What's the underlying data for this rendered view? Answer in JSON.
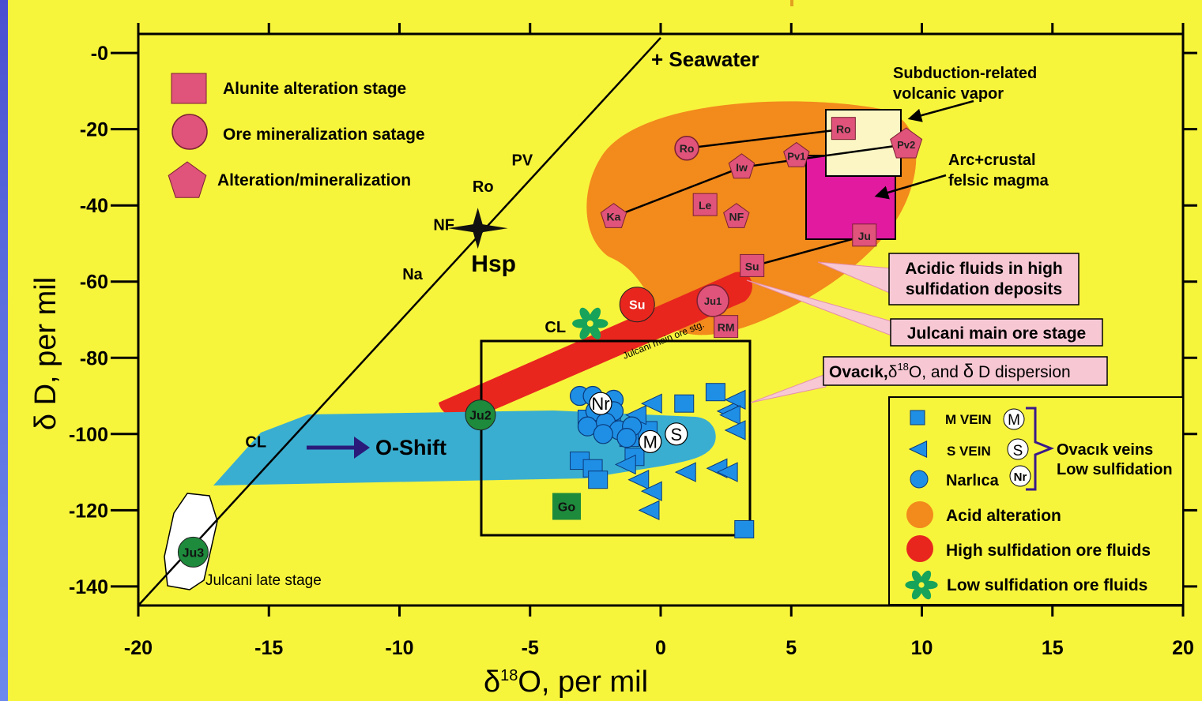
{
  "colors": {
    "panel": "#f7f43c",
    "acid_alteration": "#f28a1c",
    "high_sulfidation": "#e8261e",
    "o_shift_band": "#3aaed0",
    "low_sulfidation": "#17a35a",
    "vein_marker": "#1f8fe6",
    "alteration_marker": "#e0537a",
    "arc_crustal_box": "#e11aa0",
    "subduction_box": "#fbf6c4",
    "green_marker": "#1e8a3c",
    "arrow": "#2a1a7a"
  },
  "chart_data": {
    "type": "scatter",
    "xlabel": "δ18O, per mil",
    "ylabel": "δ D, per mil",
    "xlim": [
      -20,
      20
    ],
    "ylim": [
      -145,
      5
    ],
    "x_ticks": [
      -20,
      -15,
      -10,
      -5,
      0,
      5,
      10,
      15,
      20
    ],
    "x_tick_labels": [
      "-20",
      "-15",
      "-10",
      "-5",
      "0",
      "5",
      "10",
      "15",
      "20"
    ],
    "y_ticks": [
      0,
      -20,
      -40,
      -60,
      -80,
      -100,
      -120,
      -140
    ],
    "y_tick_labels": [
      "-0",
      "-20",
      "-40",
      "-60",
      "-80",
      "-100",
      "-120",
      "-140"
    ],
    "meteoric_water_line": {
      "x": [
        -20,
        0
      ],
      "y": [
        -145,
        4
      ]
    },
    "alteration_samples": [
      {
        "label": "Ro",
        "shape": "circle",
        "x": 1.0,
        "y": -25
      },
      {
        "label": "Ro",
        "shape": "square",
        "x": 7.0,
        "y": -20
      },
      {
        "label": "Pv1",
        "shape": "pentagon",
        "x": 5.2,
        "y": -27
      },
      {
        "label": "Pv2",
        "shape": "pentagon",
        "x": 9.4,
        "y": -24
      },
      {
        "label": "Iw",
        "shape": "pentagon",
        "x": 3.1,
        "y": -30
      },
      {
        "label": "Le",
        "shape": "square",
        "x": 1.7,
        "y": -40
      },
      {
        "label": "NF",
        "shape": "pentagon",
        "x": 2.9,
        "y": -43
      },
      {
        "label": "Ka",
        "shape": "pentagon",
        "x": -1.8,
        "y": -43
      },
      {
        "label": "Ju",
        "shape": "square",
        "x": 7.8,
        "y": -48
      },
      {
        "label": "Su",
        "shape": "square",
        "x": 3.5,
        "y": -56
      },
      {
        "label": "RM",
        "shape": "square",
        "x": 2.5,
        "y": -72
      },
      {
        "label": "Ju1",
        "shape": "circle",
        "x": 2.0,
        "y": -65
      }
    ],
    "alteration_links": [
      [
        "Ro",
        "Ro"
      ],
      [
        "Iw",
        "Pv2"
      ],
      [
        "Ka",
        "Iw"
      ],
      [
        "Su",
        "Ju"
      ]
    ],
    "ore_samples": [
      {
        "label": "Su",
        "color": "red",
        "x": -0.9,
        "y": -66
      },
      {
        "label": "Ju2",
        "color": "green",
        "x": -6.9,
        "y": -95
      },
      {
        "label": "Ju3",
        "color": "green",
        "x": -17.9,
        "y": -131
      },
      {
        "label": "Go",
        "color": "green",
        "x": -3.6,
        "y": -119
      }
    ],
    "reference_points": [
      {
        "label": "PV",
        "x": -5.3,
        "y": -28
      },
      {
        "label": "Ro",
        "x": -6.8,
        "y": -35
      },
      {
        "label": "NF",
        "x": -8.3,
        "y": -45
      },
      {
        "label": "Na",
        "x": -9.5,
        "y": -58
      },
      {
        "label": "CL",
        "x": -15.5,
        "y": -102
      }
    ],
    "hsp": {
      "label": "Hsp",
      "x": -7.0,
      "y": -46
    },
    "seawater": {
      "label": "+ Seawater",
      "x": 0,
      "y": 0
    },
    "cl_low_sulfidation": {
      "label": "CL",
      "x": -2.7,
      "y": -71
    },
    "m_veins": [
      [
        -2.8,
        -96
      ],
      [
        -1.9,
        -96
      ],
      [
        -1.2,
        -101
      ],
      [
        -0.5,
        -99
      ],
      [
        0.9,
        -92
      ],
      [
        2.1,
        -89
      ],
      [
        -3.1,
        -107
      ],
      [
        -2.6,
        -109
      ],
      [
        -2.4,
        -112
      ],
      [
        -1.0,
        -106
      ],
      [
        3.2,
        -125
      ]
    ],
    "s_veins": [
      [
        -0.3,
        -92
      ],
      [
        -0.9,
        -95
      ],
      [
        2.6,
        -94
      ],
      [
        2.9,
        -91
      ],
      [
        2.7,
        -95
      ],
      [
        2.9,
        -99
      ],
      [
        -1.3,
        -108
      ],
      [
        -0.8,
        -112
      ],
      [
        -0.3,
        -115
      ],
      [
        -0.4,
        -120
      ],
      [
        1.0,
        -110
      ],
      [
        2.2,
        -109
      ],
      [
        2.6,
        -110
      ]
    ],
    "narlica": [
      [
        -3.1,
        -90
      ],
      [
        -2.6,
        -90
      ],
      [
        -1.8,
        -91
      ],
      [
        -2.5,
        -94
      ],
      [
        -1.8,
        -94
      ],
      [
        -2.8,
        -98
      ],
      [
        -2.1,
        -97
      ],
      [
        -1.6,
        -99
      ],
      [
        -1.1,
        -98
      ],
      [
        -2.2,
        -100
      ],
      [
        -1.3,
        -101
      ]
    ],
    "vein_badges": [
      {
        "label": "Nr",
        "x": -2.3,
        "y": -92
      },
      {
        "label": "M",
        "x": -0.4,
        "y": -102
      },
      {
        "label": "S",
        "x": 0.6,
        "y": -100
      }
    ],
    "fields": [
      {
        "label": "Acid alteration"
      },
      {
        "label": "Julcani main ore stg."
      },
      {
        "label": "O-Shift"
      },
      {
        "label": "Julcani late stage"
      }
    ],
    "annotations": [
      {
        "label": "Subduction-related\nvolcanic vapor"
      },
      {
        "label": "Arc+crustal\nfelsic magma"
      },
      {
        "label": "Acidic fluids in high\nsulfidation deposits"
      },
      {
        "label": "Julcani main ore stage"
      },
      {
        "label": "Ovacık,δ18O, and δD dispersion"
      }
    ],
    "legend_top": [
      {
        "shape": "square",
        "label": "Alunite alteration stage"
      },
      {
        "shape": "circle",
        "label": "Ore mineralization satage"
      },
      {
        "shape": "pentagon",
        "label": "Alteration/mineralization"
      }
    ],
    "legend_bottom": [
      {
        "key": "m_vein",
        "label": "M VEIN",
        "badge": "M"
      },
      {
        "key": "s_vein",
        "label": "S VEIN",
        "badge": "S"
      },
      {
        "key": "narlica",
        "label": "Narlıca",
        "badge": "Nr"
      },
      {
        "key": "acid",
        "label": "Acid alteration"
      },
      {
        "key": "high",
        "label": "High sulfidation ore fluids"
      },
      {
        "key": "low",
        "label": "Low sulfidation ore fluids"
      }
    ],
    "brace_labels": [
      "Ovacık veins",
      "Low sulfidation"
    ],
    "grid": false
  }
}
